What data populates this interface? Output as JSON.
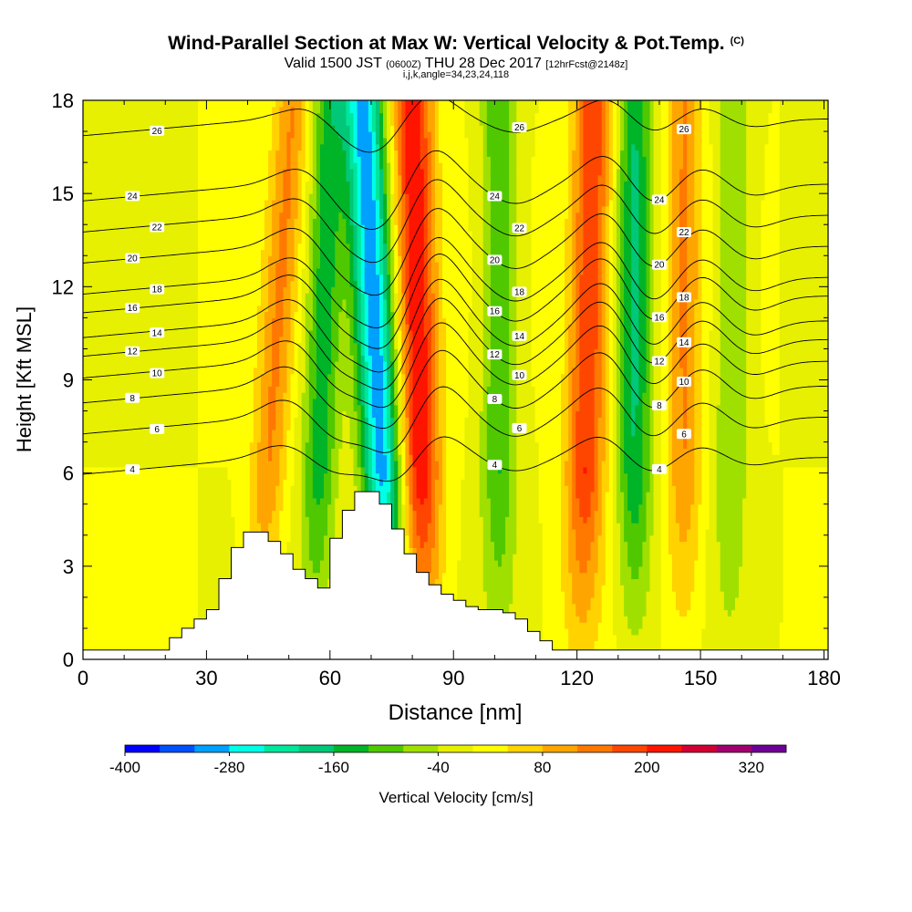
{
  "title": {
    "main": "Wind-Parallel Section at Max W: Vertical Velocity & Pot.Temp.",
    "main_tag": "(C)",
    "valid_prefix": "Valid 1500 JST",
    "valid_zulu": "(0600Z)",
    "valid_date": "THU 28 Dec 2017",
    "forecast": "[12hrFcst@2148z]",
    "indices": "i,j,k,angle=34,23,24,118"
  },
  "colorbar": {
    "title": "Vertical Velocity [cm/s]",
    "tick_labels": [
      "-400",
      "-280",
      "-160",
      "-40",
      "80",
      "200",
      "320"
    ],
    "tick_values": [
      -400,
      -280,
      -160,
      -40,
      80,
      200,
      320
    ],
    "levels": [
      -400,
      -360,
      -320,
      -280,
      -240,
      -200,
      -160,
      -120,
      -80,
      -40,
      0,
      40,
      80,
      120,
      160,
      200,
      240,
      280,
      320
    ],
    "colors": [
      "#0000ff",
      "#0050ff",
      "#00a0ff",
      "#00ffe6",
      "#00e69b",
      "#00c878",
      "#00b428",
      "#50c800",
      "#a0e000",
      "#e6f000",
      "#ffff00",
      "#ffd200",
      "#ffa500",
      "#ff7800",
      "#ff4600",
      "#ff1400",
      "#d20032",
      "#a0006e",
      "#6e0096"
    ]
  },
  "chart_data": {
    "type": "heatmap",
    "title": "Wind-Parallel Section at Max W: Vertical Velocity & Pot.Temp.",
    "xlabel": "Distance [nm]",
    "ylabel": "Height [Kft MSL]",
    "xlim": [
      0,
      181
    ],
    "ylim": [
      0,
      18
    ],
    "xticks": [
      0,
      30,
      60,
      90,
      120,
      150,
      180
    ],
    "yticks": [
      0,
      3,
      6,
      9,
      12,
      15,
      18
    ],
    "color_field": "Vertical Velocity [cm/s]",
    "contour_field": "Potential Temperature [C]",
    "wave_bands": [
      {
        "x_at_surface": 42,
        "x_at_top": 51,
        "kind": "weak updraft",
        "w_cm_s": 120
      },
      {
        "x_at_surface": 56,
        "x_at_top": 60,
        "kind": "weak downdraft",
        "w_cm_s": -140
      },
      {
        "x_at_surface": 75,
        "x_at_top": 68,
        "kind": "strong downdraft",
        "w_cm_s": -300
      },
      {
        "x_at_surface": 83,
        "x_at_top": 80,
        "kind": "strong updraft",
        "w_cm_s": 240
      },
      {
        "x_at_surface": 101,
        "x_at_top": 101,
        "kind": "downdraft",
        "w_cm_s": -120
      },
      {
        "x_at_surface": 121,
        "x_at_top": 124,
        "kind": "updraft",
        "w_cm_s": 200
      },
      {
        "x_at_surface": 134,
        "x_at_top": 134,
        "kind": "downdraft",
        "w_cm_s": -160
      },
      {
        "x_at_surface": 146,
        "x_at_top": 146,
        "kind": "updraft",
        "w_cm_s": 120
      },
      {
        "x_at_surface": 157,
        "x_at_top": 158,
        "kind": "weak downdraft",
        "w_cm_s": -80
      }
    ],
    "terrain": [
      {
        "x": 0,
        "h": 0.3
      },
      {
        "x": 19,
        "h": 0.3
      },
      {
        "x": 21,
        "h": 0.7
      },
      {
        "x": 24,
        "h": 1.0
      },
      {
        "x": 27,
        "h": 1.3
      },
      {
        "x": 30,
        "h": 1.6
      },
      {
        "x": 33,
        "h": 2.6
      },
      {
        "x": 36,
        "h": 3.6
      },
      {
        "x": 39,
        "h": 4.1
      },
      {
        "x": 42,
        "h": 4.1
      },
      {
        "x": 45,
        "h": 3.8
      },
      {
        "x": 48,
        "h": 3.4
      },
      {
        "x": 51,
        "h": 2.9
      },
      {
        "x": 54,
        "h": 2.6
      },
      {
        "x": 57,
        "h": 2.3
      },
      {
        "x": 60,
        "h": 3.9
      },
      {
        "x": 63,
        "h": 4.8
      },
      {
        "x": 66,
        "h": 5.4
      },
      {
        "x": 69,
        "h": 5.4
      },
      {
        "x": 72,
        "h": 5.0
      },
      {
        "x": 75,
        "h": 4.2
      },
      {
        "x": 78,
        "h": 3.4
      },
      {
        "x": 81,
        "h": 2.8
      },
      {
        "x": 84,
        "h": 2.4
      },
      {
        "x": 87,
        "h": 2.1
      },
      {
        "x": 90,
        "h": 1.9
      },
      {
        "x": 93,
        "h": 1.7
      },
      {
        "x": 96,
        "h": 1.6
      },
      {
        "x": 99,
        "h": 1.6
      },
      {
        "x": 102,
        "h": 1.5
      },
      {
        "x": 105,
        "h": 1.3
      },
      {
        "x": 108,
        "h": 0.9
      },
      {
        "x": 111,
        "h": 0.6
      },
      {
        "x": 114,
        "h": 0.3
      },
      {
        "x": 181,
        "h": 0.3
      }
    ],
    "theta_contours": [
      {
        "value": 4,
        "base_height": 6.5,
        "amp": 0.9
      },
      {
        "value": 6,
        "base_height": 7.8,
        "amp": 1.3
      },
      {
        "value": 8,
        "base_height": 8.8,
        "amp": 1.5
      },
      {
        "value": 10,
        "base_height": 9.6,
        "amp": 1.6
      },
      {
        "value": 12,
        "base_height": 10.3,
        "amp": 1.7
      },
      {
        "value": 14,
        "base_height": 10.9,
        "amp": 1.7
      },
      {
        "value": 16,
        "base_height": 11.7,
        "amp": 1.7
      },
      {
        "value": 18,
        "base_height": 12.3,
        "amp": 1.6
      },
      {
        "value": 20,
        "base_height": 13.3,
        "amp": 1.5
      },
      {
        "value": 22,
        "base_height": 14.3,
        "amp": 1.4
      },
      {
        "value": 24,
        "base_height": 15.3,
        "amp": 1.3
      },
      {
        "value": 26,
        "base_height": 17.4,
        "amp": 0.9
      }
    ]
  }
}
